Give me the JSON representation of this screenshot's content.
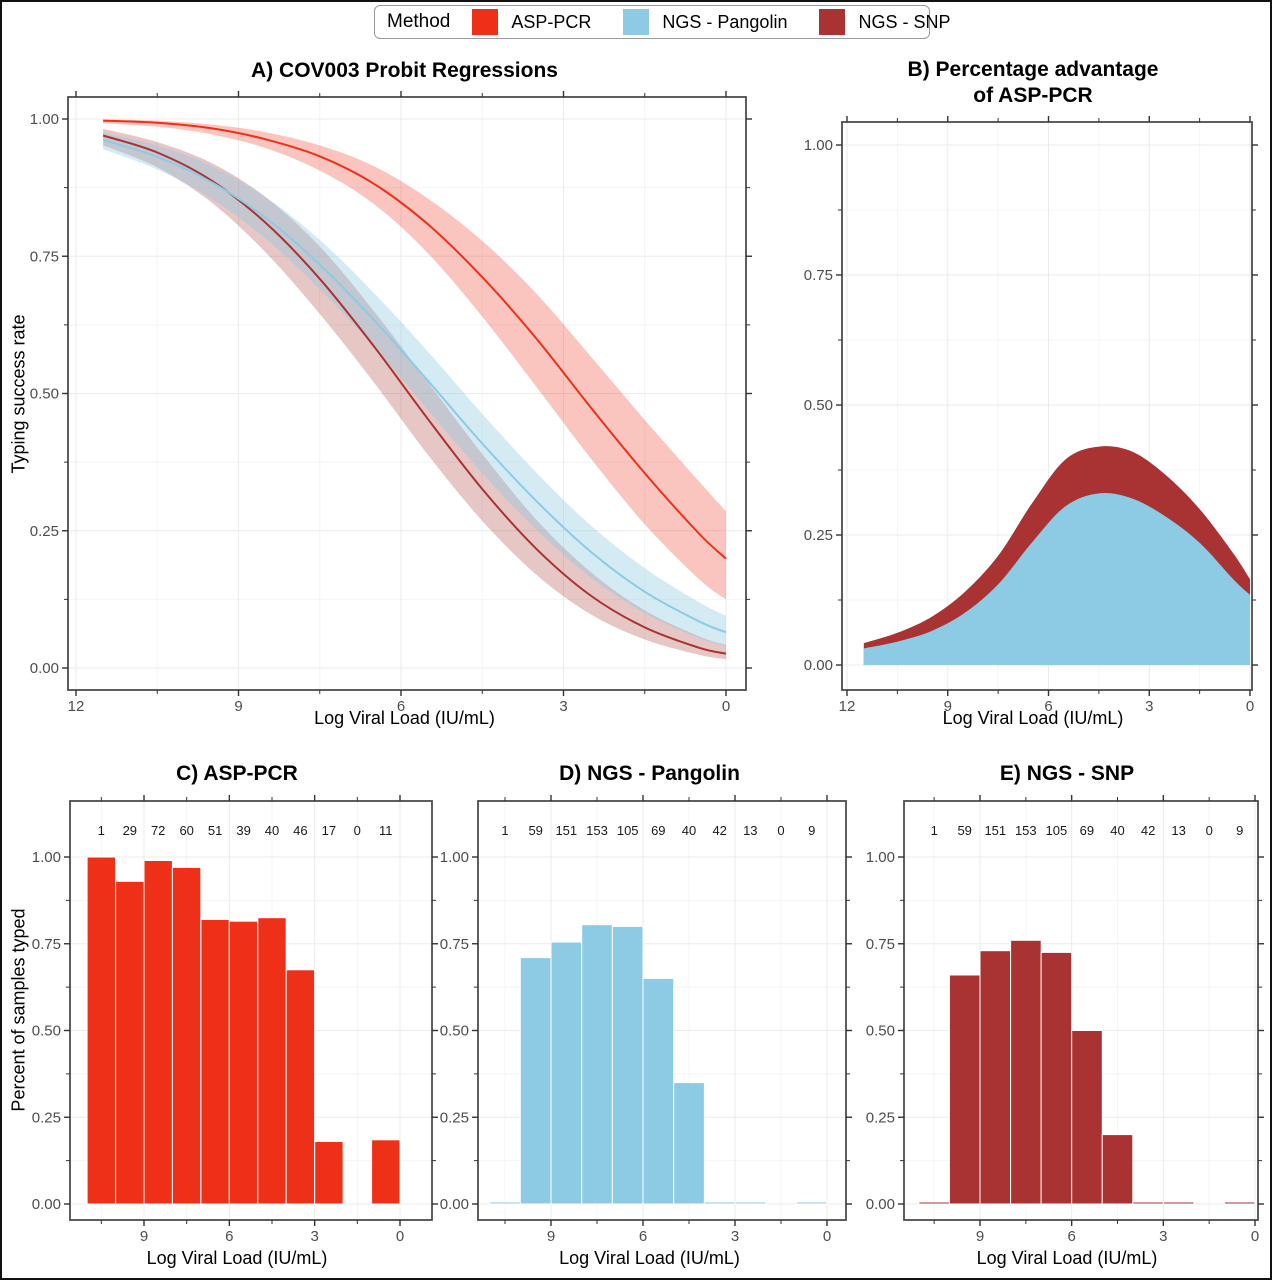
{
  "figure": {
    "legend": {
      "title": "Method",
      "items": [
        {
          "label": "ASP-PCR",
          "color": "#EE3018"
        },
        {
          "label": "NGS - Pangolin",
          "color": "#8DCAE3"
        },
        {
          "label": "NGS - SNP",
          "color": "#A93232"
        }
      ]
    }
  },
  "chart_data": [
    {
      "id": "A",
      "type": "line",
      "title": "A) COV003 Probit Regressions",
      "xlabel": "Log Viral Load (IU/mL)",
      "ylabel": "Typing success rate",
      "x_ticks": [
        12,
        9,
        6,
        3,
        0
      ],
      "y_tick_labels": [
        "1.00",
        "0.75",
        "0.50",
        "0.25",
        "0.00"
      ],
      "y_tick_values": [
        1,
        0.75,
        0.5,
        0.25,
        0
      ],
      "x_reversed": true,
      "ylim": [
        0,
        1
      ],
      "x": [
        11.5,
        10.5,
        9.5,
        8.5,
        7.5,
        6.5,
        5.5,
        4.5,
        3.5,
        2.5,
        1.5,
        0.5,
        0
      ],
      "series": [
        {
          "name": "NGS - SNP",
          "color": "#A93232",
          "mean": [
            0.97,
            0.939,
            0.888,
            0.811,
            0.709,
            0.586,
            0.453,
            0.326,
            0.217,
            0.132,
            0.074,
            0.037,
            0.026
          ],
          "lower": [
            0.952,
            0.912,
            0.848,
            0.757,
            0.645,
            0.52,
            0.388,
            0.268,
            0.17,
            0.098,
            0.052,
            0.024,
            0.016
          ],
          "upper": [
            0.982,
            0.958,
            0.92,
            0.858,
            0.768,
            0.65,
            0.52,
            0.39,
            0.27,
            0.175,
            0.105,
            0.058,
            0.042
          ]
        },
        {
          "name": "NGS - Pangolin",
          "color": "#8DCAE3",
          "mean": [
            0.962,
            0.931,
            0.885,
            0.82,
            0.735,
            0.634,
            0.523,
            0.409,
            0.304,
            0.212,
            0.139,
            0.085,
            0.065
          ],
          "lower": [
            0.945,
            0.908,
            0.855,
            0.782,
            0.69,
            0.585,
            0.47,
            0.355,
            0.252,
            0.165,
            0.1,
            0.055,
            0.04
          ],
          "upper": [
            0.975,
            0.952,
            0.915,
            0.858,
            0.78,
            0.683,
            0.576,
            0.463,
            0.356,
            0.26,
            0.182,
            0.12,
            0.095
          ]
        },
        {
          "name": "ASP-PCR",
          "color": "#EE3018",
          "mean": [
            0.997,
            0.993,
            0.983,
            0.963,
            0.932,
            0.882,
            0.808,
            0.712,
            0.6,
            0.475,
            0.355,
            0.245,
            0.199
          ],
          "lower": [
            0.992,
            0.986,
            0.972,
            0.947,
            0.906,
            0.845,
            0.755,
            0.64,
            0.512,
            0.382,
            0.262,
            0.162,
            0.125
          ],
          "upper": [
            0.999,
            0.997,
            0.99,
            0.976,
            0.952,
            0.914,
            0.855,
            0.778,
            0.682,
            0.568,
            0.452,
            0.34,
            0.285
          ]
        }
      ]
    },
    {
      "id": "B",
      "type": "area",
      "title": "B) Percentage advantage of ASP-PCR",
      "title_lines": [
        "B) Percentage advantage",
        "of ASP-PCR"
      ],
      "xlabel": "Log Viral Load (IU/mL)",
      "x_ticks": [
        12,
        9,
        6,
        3,
        0
      ],
      "y_tick_labels": [
        "1.00",
        "0.75",
        "0.50",
        "0.25",
        "0.00"
      ],
      "y_tick_values": [
        1,
        0.75,
        0.5,
        0.25,
        0
      ],
      "x_reversed": true,
      "ylim": [
        0,
        1
      ],
      "x": [
        11.5,
        10.5,
        9.5,
        8.5,
        7.5,
        6.5,
        5.5,
        4.5,
        3.5,
        2.5,
        1.5,
        0.5,
        0
      ],
      "series": [
        {
          "name": "Advantage over NGS - SNP (total)",
          "color": "#A93232",
          "values": [
            0.042,
            0.062,
            0.092,
            0.14,
            0.21,
            0.31,
            0.395,
            0.42,
            0.41,
            0.365,
            0.3,
            0.215,
            0.165
          ]
        },
        {
          "name": "Advantage over NGS - Pangolin",
          "color": "#8DCAE3",
          "values": [
            0.032,
            0.045,
            0.065,
            0.1,
            0.155,
            0.235,
            0.305,
            0.33,
            0.32,
            0.285,
            0.235,
            0.165,
            0.135
          ]
        }
      ]
    },
    {
      "id": "C",
      "type": "bar",
      "title": "C) ASP-PCR",
      "xlabel": "Log Viral Load (IU/mL)",
      "ylabel": "Percent of samples typed",
      "color": "#EE3018",
      "x_ticks": [
        9,
        6,
        3,
        0
      ],
      "y_tick_labels": [
        "1.00",
        "0.75",
        "0.50",
        "0.25",
        "0.00"
      ],
      "y_tick_values": [
        1,
        0.75,
        0.5,
        0.25,
        0
      ],
      "x_reversed": true,
      "bin_centers": [
        10.5,
        9.5,
        8.5,
        7.5,
        6.5,
        5.5,
        4.5,
        3.5,
        2.5,
        1.5,
        0.5
      ],
      "counts": [
        1,
        29,
        72,
        60,
        51,
        39,
        40,
        46,
        17,
        0,
        11
      ],
      "values": [
        1.0,
        0.93,
        0.99,
        0.97,
        0.82,
        0.815,
        0.825,
        0.675,
        0.18,
        0,
        0.185
      ]
    },
    {
      "id": "D",
      "type": "bar",
      "title": "D) NGS - Pangolin",
      "xlabel": "Log Viral Load (IU/mL)",
      "color": "#8DCAE3",
      "x_ticks": [
        9,
        6,
        3,
        0
      ],
      "y_tick_labels": [
        "1.00",
        "0.75",
        "0.50",
        "0.25",
        "0.00"
      ],
      "y_tick_values": [
        1,
        0.75,
        0.5,
        0.25,
        0
      ],
      "x_reversed": true,
      "bin_centers": [
        10.5,
        9.5,
        8.5,
        7.5,
        6.5,
        5.5,
        4.5,
        3.5,
        2.5,
        1.5,
        0.5
      ],
      "counts": [
        1,
        59,
        151,
        153,
        105,
        69,
        40,
        42,
        13,
        0,
        9
      ],
      "values": [
        0,
        0.71,
        0.755,
        0.805,
        0.8,
        0.65,
        0.35,
        0,
        0,
        0,
        0
      ]
    },
    {
      "id": "E",
      "type": "bar",
      "title": "E) NGS - SNP",
      "xlabel": "Log Viral Load (IU/mL)",
      "color": "#A93232",
      "x_ticks": [
        9,
        6,
        3,
        0
      ],
      "y_tick_labels": [
        "1.00",
        "0.75",
        "0.50",
        "0.25",
        "0.00"
      ],
      "y_tick_values": [
        1,
        0.75,
        0.5,
        0.25,
        0
      ],
      "x_reversed": true,
      "bin_centers": [
        10.5,
        9.5,
        8.5,
        7.5,
        6.5,
        5.5,
        4.5,
        3.5,
        2.5,
        1.5,
        0.5
      ],
      "counts": [
        1,
        59,
        151,
        153,
        105,
        69,
        40,
        42,
        13,
        0,
        9
      ],
      "values": [
        0,
        0.66,
        0.73,
        0.76,
        0.725,
        0.5,
        0.2,
        0,
        0,
        0,
        0
      ]
    }
  ]
}
